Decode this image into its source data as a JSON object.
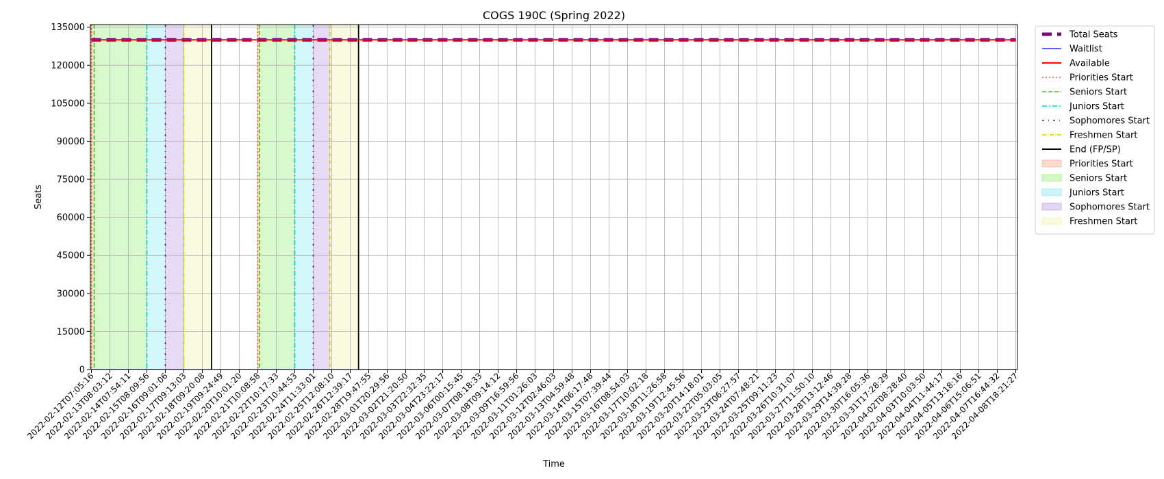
{
  "chart_data": {
    "type": "line",
    "title": "COGS 190C (Spring 2022)",
    "xlabel": "Time",
    "ylabel": "Seats",
    "ylim": [
      0,
      136000
    ],
    "yticks": [
      0,
      15000,
      30000,
      45000,
      60000,
      75000,
      90000,
      105000,
      120000,
      135000
    ],
    "grid": true,
    "legend_position": "outside-top-right",
    "x": [
      "2022-02-12T07:05:16",
      "2022-02-13T08:03:12",
      "2022-02-14T07:54:11",
      "2022-02-15T08:09:56",
      "2022-02-16T09:01:06",
      "2022-02-17T09:13:03",
      "2022-02-18T09:20:08",
      "2022-02-19T09:24:49",
      "2022-02-20T10:01:20",
      "2022-02-21T10:08:58",
      "2022-02-22T10:17:33",
      "2022-02-23T10:44:53",
      "2022-02-24T11:33:01",
      "2022-02-25T12:08:10",
      "2022-02-26T12:39:17",
      "2022-02-28T19:47:55",
      "2022-03-01T20:29:56",
      "2022-03-02T21:20:50",
      "2022-03-03T22:32:35",
      "2022-03-04T23:22:17",
      "2022-03-06T00:15:45",
      "2022-03-07T08:18:33",
      "2022-03-08T09:14:12",
      "2022-03-09T16:59:56",
      "2022-03-11T01:26:03",
      "2022-03-12T02:46:03",
      "2022-03-13T04:59:48",
      "2022-03-14T06:17:48",
      "2022-03-15T07:39:44",
      "2022-03-16T08:54:03",
      "2022-03-17T10:02:18",
      "2022-03-18T11:26:58",
      "2022-03-19T12:45:56",
      "2022-03-20T14:18:01",
      "2022-03-22T05:03:05",
      "2022-03-23T06:27:57",
      "2022-03-24T07:48:21",
      "2022-03-25T09:11:23",
      "2022-03-26T10:31:07",
      "2022-03-27T11:50:10",
      "2022-03-28T13:12:46",
      "2022-03-29T14:39:28",
      "2022-03-30T16:05:36",
      "2022-03-31T17:28:29",
      "2022-04-02T08:28:40",
      "2022-04-03T10:03:50",
      "2022-04-04T11:44:17",
      "2022-04-05T13:18:16",
      "2022-04-06T15:06:51",
      "2022-04-07T16:44:32",
      "2022-04-08T18:21:27"
    ],
    "series": [
      {
        "name": "Total Seats",
        "color": "#800080",
        "style": "dashed-thick",
        "values": [
          130000,
          130000,
          130000,
          130000,
          130000,
          130000,
          130000,
          130000,
          130000,
          130000,
          130000,
          130000,
          130000,
          130000,
          130000,
          130000,
          130000,
          130000,
          130000,
          130000,
          130000,
          130000,
          130000,
          130000,
          130000,
          130000,
          130000,
          130000,
          130000,
          130000,
          130000,
          130000,
          130000,
          130000,
          130000,
          130000,
          130000,
          130000,
          130000,
          130000,
          130000,
          130000,
          130000,
          130000,
          130000,
          130000,
          130000,
          130000,
          130000,
          130000,
          130000
        ]
      },
      {
        "name": "Waitlist",
        "color": "#0000ff",
        "style": "solid-thin",
        "values": [
          0,
          0,
          0,
          0,
          0,
          0,
          0,
          0,
          0,
          0,
          0,
          0,
          0,
          0,
          0,
          0,
          0,
          0,
          0,
          0,
          0,
          0,
          0,
          0,
          0,
          0,
          0,
          0,
          0,
          0,
          0,
          0,
          0,
          0,
          0,
          0,
          0,
          0,
          0,
          0,
          0,
          0,
          0,
          0,
          0,
          0,
          0,
          0,
          0,
          0,
          0
        ]
      },
      {
        "name": "Available",
        "color": "#ff0000",
        "style": "solid",
        "values": [
          130000,
          130000,
          130000,
          130000,
          130000,
          130000,
          130000,
          130000,
          130000,
          130000,
          130000,
          130000,
          130000,
          130000,
          130000,
          130000,
          130000,
          130000,
          130000,
          130000,
          130000,
          130000,
          130000,
          130000,
          130000,
          130000,
          130000,
          130000,
          130000,
          130000,
          130000,
          130000,
          130000,
          130000,
          130000,
          130000,
          130000,
          130000,
          130000,
          130000,
          130000,
          130000,
          130000,
          130000,
          130000,
          130000,
          130000,
          130000,
          130000,
          130000,
          130000
        ]
      }
    ],
    "vlines": [
      {
        "name": "Priorities Start",
        "color": "#ff4500",
        "style": "dotted",
        "at": [
          0,
          9
        ]
      },
      {
        "name": "Seniors Start",
        "color": "#33cc00",
        "style": "dashed",
        "at": [
          0.15,
          9.1
        ]
      },
      {
        "name": "Juniors Start",
        "color": "#00cccc",
        "style": "dashdot",
        "at": [
          3,
          11
        ]
      },
      {
        "name": "Sophomores Start",
        "color": "#6a0dad",
        "style": "dashdot-dense",
        "at": [
          4,
          12
        ]
      },
      {
        "name": "Freshmen Start",
        "color": "#cccc00",
        "style": "dashdot-loose",
        "at": [
          5,
          12.9
        ]
      },
      {
        "name": "End (FP/SP)",
        "color": "#000000",
        "style": "solid",
        "at": [
          6.5,
          14.45
        ]
      }
    ],
    "spans": [
      {
        "name": "Priorities Start",
        "color": "#f4a582",
        "ranges": [
          [
            0,
            0.15
          ],
          [
            9,
            9.1
          ]
        ]
      },
      {
        "name": "Seniors Start",
        "color": "#90ee70",
        "ranges": [
          [
            0.15,
            3
          ],
          [
            9.1,
            11
          ]
        ]
      },
      {
        "name": "Juniors Start",
        "color": "#80e5ee",
        "ranges": [
          [
            3,
            4
          ],
          [
            11,
            12
          ]
        ]
      },
      {
        "name": "Sophomores Start",
        "color": "#b794e6",
        "ranges": [
          [
            4,
            5
          ],
          [
            12,
            12.9
          ]
        ]
      },
      {
        "name": "Freshmen Start",
        "color": "#f0f0a8",
        "ranges": [
          [
            5,
            6.5
          ],
          [
            12.9,
            14.45
          ]
        ]
      }
    ]
  }
}
